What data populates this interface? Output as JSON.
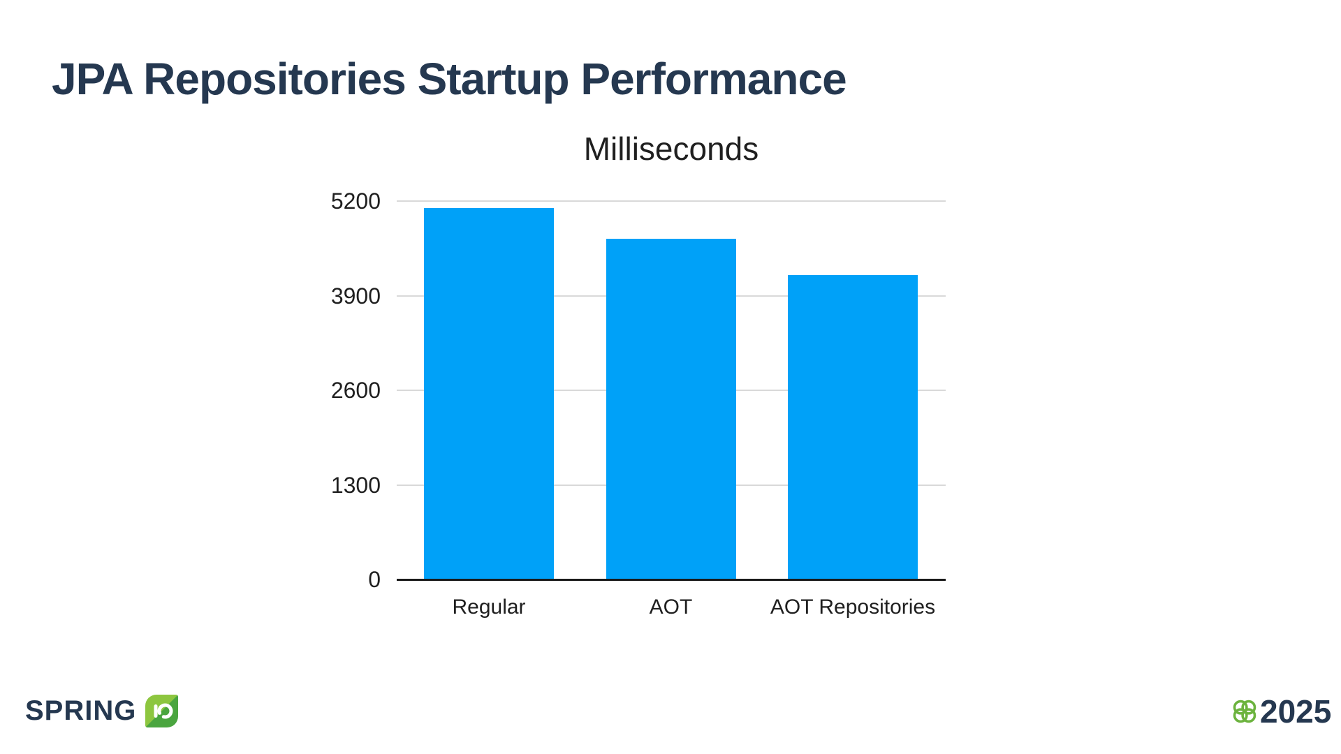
{
  "slide": {
    "title": "JPA Repositories Startup Performance"
  },
  "chart_data": {
    "type": "bar",
    "title": "Milliseconds",
    "categories": [
      "Regular",
      "AOT",
      "AOT Repositories"
    ],
    "values": [
      5100,
      4680,
      4185
    ],
    "yticks": [
      0,
      1300,
      2600,
      3900,
      5200
    ],
    "ylim": [
      0,
      5200
    ],
    "xlabel": "",
    "ylabel": "",
    "grid": true,
    "legend_position": "none",
    "bar_color": "#00a1f8",
    "gridline_color": "#d9d9d9",
    "axis_color": "#1a1a1a",
    "text_color": "#1f1f1f"
  },
  "footer": {
    "brand_text": "SPRING",
    "brand_badge_icon": "spring-io-leaf-icon",
    "year_text": "2025",
    "year_icon": "panot-flower-icon",
    "colors": {
      "navy": "#253850",
      "leaf_light": "#8dc63f",
      "leaf_dark": "#4aa53f",
      "flower_green": "#6cb33e",
      "badge_glyph": "#ffffff"
    }
  }
}
